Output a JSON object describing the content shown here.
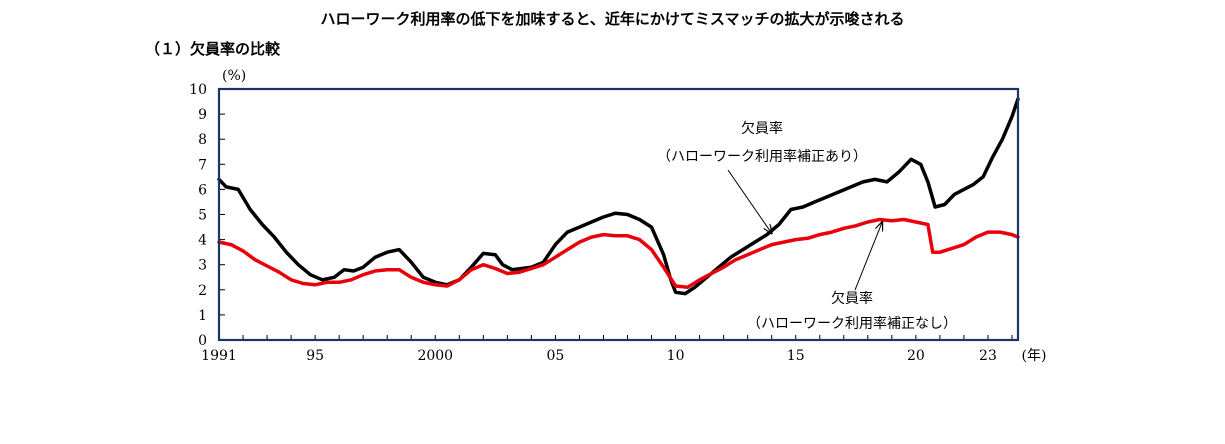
{
  "title": "ハローワーク利用率の低下を加味すると、近年にかけてミスマッチの拡大が示唆される",
  "panel_title": "（１）欠員率の比較",
  "chart_data": {
    "type": "line",
    "ylabel": "(%)",
    "xunit": "(年)",
    "ylim": [
      0,
      10
    ],
    "xlim": [
      1991,
      2024.25
    ],
    "yticks": [
      0,
      1,
      2,
      3,
      4,
      5,
      6,
      7,
      8,
      9,
      10
    ],
    "xticks": [
      {
        "value": 1991,
        "label": "1991"
      },
      {
        "value": 1995,
        "label": "95"
      },
      {
        "value": 2000,
        "label": "2000"
      },
      {
        "value": 2005,
        "label": "05"
      },
      {
        "value": 2010,
        "label": "10"
      },
      {
        "value": 2015,
        "label": "15"
      },
      {
        "value": 2020,
        "label": "20"
      },
      {
        "value": 2023,
        "label": "23"
      }
    ],
    "grid": false,
    "series": [
      {
        "name": "欠員率（ハローワーク利用率補正あり）",
        "color": "#000000",
        "points": [
          [
            1991.0,
            6.4
          ],
          [
            1991.3,
            6.1
          ],
          [
            1991.8,
            6.0
          ],
          [
            1992.3,
            5.2
          ],
          [
            1992.8,
            4.6
          ],
          [
            1993.3,
            4.1
          ],
          [
            1993.8,
            3.5
          ],
          [
            1994.3,
            3.0
          ],
          [
            1994.8,
            2.6
          ],
          [
            1995.3,
            2.4
          ],
          [
            1995.8,
            2.5
          ],
          [
            1996.2,
            2.8
          ],
          [
            1996.6,
            2.75
          ],
          [
            1997.0,
            2.9
          ],
          [
            1997.5,
            3.3
          ],
          [
            1998.0,
            3.5
          ],
          [
            1998.5,
            3.6
          ],
          [
            1999.0,
            3.1
          ],
          [
            1999.5,
            2.5
          ],
          [
            2000.0,
            2.3
          ],
          [
            2000.5,
            2.2
          ],
          [
            2001.0,
            2.4
          ],
          [
            2001.5,
            2.9
          ],
          [
            2002.0,
            3.45
          ],
          [
            2002.5,
            3.4
          ],
          [
            2002.8,
            3.0
          ],
          [
            2003.2,
            2.8
          ],
          [
            2003.6,
            2.85
          ],
          [
            2004.0,
            2.9
          ],
          [
            2004.5,
            3.1
          ],
          [
            2005.0,
            3.8
          ],
          [
            2005.5,
            4.3
          ],
          [
            2006.0,
            4.5
          ],
          [
            2006.5,
            4.7
          ],
          [
            2007.0,
            4.9
          ],
          [
            2007.5,
            5.05
          ],
          [
            2008.0,
            5.0
          ],
          [
            2008.5,
            4.8
          ],
          [
            2009.0,
            4.5
          ],
          [
            2009.5,
            3.4
          ],
          [
            2009.8,
            2.4
          ],
          [
            2010.0,
            1.9
          ],
          [
            2010.4,
            1.85
          ],
          [
            2010.8,
            2.1
          ],
          [
            2011.3,
            2.5
          ],
          [
            2011.8,
            2.9
          ],
          [
            2012.3,
            3.3
          ],
          [
            2012.8,
            3.6
          ],
          [
            2013.3,
            3.9
          ],
          [
            2013.8,
            4.2
          ],
          [
            2014.3,
            4.6
          ],
          [
            2014.8,
            5.2
          ],
          [
            2015.3,
            5.3
          ],
          [
            2015.8,
            5.5
          ],
          [
            2016.3,
            5.7
          ],
          [
            2016.8,
            5.9
          ],
          [
            2017.3,
            6.1
          ],
          [
            2017.8,
            6.3
          ],
          [
            2018.3,
            6.4
          ],
          [
            2018.8,
            6.3
          ],
          [
            2019.3,
            6.7
          ],
          [
            2019.8,
            7.2
          ],
          [
            2020.2,
            7.0
          ],
          [
            2020.5,
            6.3
          ],
          [
            2020.8,
            5.3
          ],
          [
            2021.2,
            5.4
          ],
          [
            2021.6,
            5.8
          ],
          [
            2022.0,
            6.0
          ],
          [
            2022.4,
            6.2
          ],
          [
            2022.8,
            6.5
          ],
          [
            2023.2,
            7.3
          ],
          [
            2023.6,
            8.0
          ],
          [
            2024.0,
            8.9
          ],
          [
            2024.25,
            9.6
          ]
        ]
      },
      {
        "name": "欠員率（ハローワーク利用率補正なし）",
        "color": "#e8000b",
        "points": [
          [
            1991.0,
            3.9
          ],
          [
            1991.5,
            3.8
          ],
          [
            1992.0,
            3.55
          ],
          [
            1992.5,
            3.2
          ],
          [
            1993.0,
            2.95
          ],
          [
            1993.5,
            2.7
          ],
          [
            1994.0,
            2.4
          ],
          [
            1994.5,
            2.25
          ],
          [
            1995.0,
            2.2
          ],
          [
            1995.5,
            2.3
          ],
          [
            1996.0,
            2.3
          ],
          [
            1996.5,
            2.4
          ],
          [
            1997.0,
            2.6
          ],
          [
            1997.5,
            2.75
          ],
          [
            1998.0,
            2.8
          ],
          [
            1998.5,
            2.8
          ],
          [
            1999.0,
            2.5
          ],
          [
            1999.5,
            2.3
          ],
          [
            2000.0,
            2.2
          ],
          [
            2000.5,
            2.15
          ],
          [
            2001.0,
            2.4
          ],
          [
            2001.5,
            2.8
          ],
          [
            2002.0,
            3.0
          ],
          [
            2002.5,
            2.85
          ],
          [
            2003.0,
            2.65
          ],
          [
            2003.5,
            2.7
          ],
          [
            2004.0,
            2.85
          ],
          [
            2004.5,
            3.0
          ],
          [
            2005.0,
            3.3
          ],
          [
            2005.5,
            3.6
          ],
          [
            2006.0,
            3.9
          ],
          [
            2006.5,
            4.1
          ],
          [
            2007.0,
            4.2
          ],
          [
            2007.5,
            4.15
          ],
          [
            2008.0,
            4.15
          ],
          [
            2008.5,
            4.0
          ],
          [
            2009.0,
            3.6
          ],
          [
            2009.5,
            2.9
          ],
          [
            2010.0,
            2.15
          ],
          [
            2010.5,
            2.1
          ],
          [
            2011.0,
            2.4
          ],
          [
            2011.5,
            2.65
          ],
          [
            2012.0,
            2.9
          ],
          [
            2012.5,
            3.2
          ],
          [
            2013.0,
            3.4
          ],
          [
            2013.5,
            3.6
          ],
          [
            2014.0,
            3.8
          ],
          [
            2014.5,
            3.9
          ],
          [
            2015.0,
            4.0
          ],
          [
            2015.5,
            4.05
          ],
          [
            2016.0,
            4.2
          ],
          [
            2016.5,
            4.3
          ],
          [
            2017.0,
            4.45
          ],
          [
            2017.5,
            4.55
          ],
          [
            2018.0,
            4.7
          ],
          [
            2018.5,
            4.8
          ],
          [
            2019.0,
            4.75
          ],
          [
            2019.5,
            4.8
          ],
          [
            2020.0,
            4.7
          ],
          [
            2020.5,
            4.6
          ],
          [
            2020.7,
            3.5
          ],
          [
            2021.0,
            3.5
          ],
          [
            2021.5,
            3.65
          ],
          [
            2022.0,
            3.8
          ],
          [
            2022.5,
            4.1
          ],
          [
            2023.0,
            4.3
          ],
          [
            2023.5,
            4.3
          ],
          [
            2024.0,
            4.2
          ],
          [
            2024.25,
            4.1
          ]
        ]
      }
    ],
    "annotations": [
      {
        "lines": [
          "欠員率",
          "（ハローワーク利用率補正あり）"
        ],
        "series": 0,
        "arrow_to": [
          2014.0,
          4.25
        ]
      },
      {
        "lines": [
          "欠員率",
          "（ハローワーク利用率補正なし）"
        ],
        "series": 1,
        "arrow_to": [
          2018.6,
          4.7
        ]
      }
    ]
  }
}
